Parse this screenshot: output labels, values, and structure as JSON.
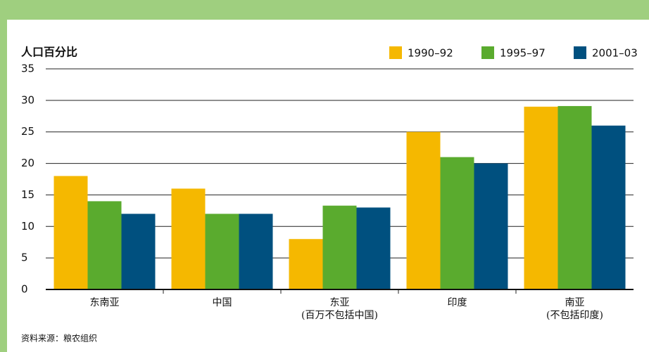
{
  "chart_data": {
    "type": "bar",
    "y_axis_label": "人口百分比",
    "categories": [
      "东南亚",
      "中国",
      "东亚\n(百万不包括中国)",
      "印度",
      "南亚\n(不包括印度)"
    ],
    "series": [
      {
        "name": "1990–92",
        "color": "#f5b800",
        "values": [
          18,
          16,
          8,
          25,
          29
        ]
      },
      {
        "name": "1995–97",
        "color": "#5aab2e",
        "values": [
          14,
          12,
          13.3,
          21,
          29.1
        ]
      },
      {
        "name": "2001–03",
        "color": "#00507f",
        "values": [
          12,
          12,
          13,
          20,
          26
        ]
      }
    ],
    "ylim": [
      0,
      35
    ],
    "yticks": [
      0,
      5,
      10,
      15,
      20,
      25,
      30,
      35
    ],
    "grid": true,
    "legend": "top-right",
    "source": "资料来源：粮农组织"
  }
}
